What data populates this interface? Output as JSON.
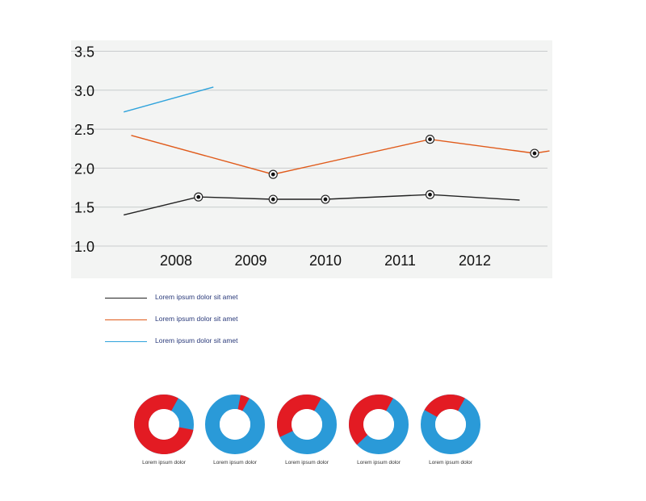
{
  "chart_data": [
    {
      "type": "line",
      "title": "",
      "xlabel": "",
      "ylabel": "",
      "ylim": [
        1.0,
        3.5
      ],
      "yticks": [
        "1.0",
        "1.5",
        "2.0",
        "2.5",
        "3.0",
        "3.5"
      ],
      "categories": [
        "2008",
        "2009",
        "2010",
        "2011",
        "2012"
      ],
      "grid": true,
      "series": [
        {
          "name": "Lorem ipsum dolor sit amet",
          "color": "#222222",
          "x": [
            2007.3,
            2008.3,
            2009.3,
            2010.0,
            2011.4,
            2012.6
          ],
          "y": [
            1.4,
            1.63,
            1.6,
            1.6,
            1.66,
            1.59
          ],
          "markers": [
            false,
            true,
            true,
            true,
            true,
            false
          ]
        },
        {
          "name": "Lorem ipsum dolor sit amet",
          "color": "#e05a1a",
          "x": [
            2007.4,
            2009.3,
            2011.4,
            2012.8,
            2013.0
          ],
          "y": [
            2.42,
            1.92,
            2.37,
            2.19,
            2.22
          ],
          "markers": [
            false,
            true,
            true,
            true,
            false
          ]
        },
        {
          "name": "Lorem ipsum dolor sit amet",
          "color": "#2fa3dc",
          "x": [
            2007.3,
            2008.5
          ],
          "y": [
            2.72,
            3.04
          ],
          "markers": [
            false,
            false
          ]
        }
      ],
      "legend_position": "bottom-left"
    },
    {
      "type": "pie",
      "style": "donut",
      "colors": {
        "red": "#e31b23",
        "blue": "#2a9ad8"
      },
      "donuts": [
        {
          "label": "Lorem ipsum dolor",
          "red_fraction": 0.8
        },
        {
          "label": "Lorem ipsum dolor",
          "red_fraction": 0.05
        },
        {
          "label": "Lorem ipsum dolor",
          "red_fraction": 0.4
        },
        {
          "label": "Lorem ipsum dolor",
          "red_fraction": 0.45
        },
        {
          "label": "Lorem ipsum dolor",
          "red_fraction": 0.25
        }
      ]
    }
  ]
}
